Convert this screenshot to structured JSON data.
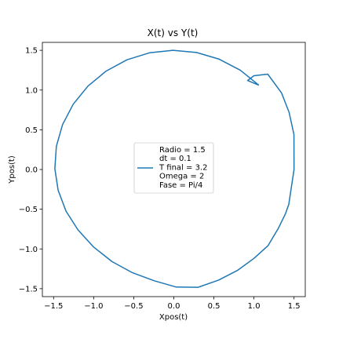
{
  "chart_data": {
    "type": "line",
    "title": "X(t) vs Y(t)",
    "xlabel": "Xpos(t)",
    "ylabel": "Ypos(t)",
    "xlim": [
      -1.64,
      1.64
    ],
    "ylim": [
      -1.6,
      1.6
    ],
    "xticks": [
      -1.5,
      -1.0,
      -0.5,
      0.0,
      0.5,
      1.0,
      1.5
    ],
    "xtick_labels": [
      "−1.5",
      "−1.0",
      "−0.5",
      "0.0",
      "0.5",
      "1.0",
      "1.5"
    ],
    "yticks": [
      -1.5,
      -1.0,
      -0.5,
      0.0,
      0.5,
      1.0,
      1.5
    ],
    "ytick_labels": [
      "−1.5",
      "−1.0",
      "−0.5",
      "0.0",
      "0.5",
      "1.0",
      "1.5"
    ],
    "grid": false,
    "legend_position": "center",
    "series": [
      {
        "name": "Radio = 1.5\ndt = 0.1\nT final = 3.2\nOmega = 2\nFase = Pi/4",
        "color": "#1f77b4",
        "x": [
          1.061,
          0.829,
          0.566,
          0.284,
          -0.01,
          -0.304,
          -0.585,
          -0.845,
          -1.071,
          -1.255,
          -1.388,
          -1.466,
          -1.484,
          -1.443,
          -1.345,
          -1.196,
          -1.002,
          -0.771,
          -0.515,
          -0.244,
          0.03,
          0.303,
          0.559,
          0.794,
          1.001,
          1.174,
          1.306,
          1.393,
          1.434,
          1.5,
          1.499,
          1.438,
          1.343,
          1.172,
          1.0,
          0.92
        ],
        "y": [
          1.061,
          1.25,
          1.389,
          1.473,
          1.5,
          1.469,
          1.381,
          1.239,
          1.05,
          0.822,
          0.565,
          0.29,
          0.01,
          -0.262,
          -0.523,
          -0.76,
          -0.975,
          -1.16,
          -1.3,
          -1.4,
          -1.48,
          -1.482,
          -1.392,
          -1.27,
          -1.118,
          -0.96,
          -0.737,
          -0.556,
          -0.44,
          0.0,
          0.44,
          0.72,
          0.965,
          1.2,
          1.18,
          1.12
        ]
      }
    ],
    "legend_lines": [
      "Radio = 1.5",
      "dt = 0.1",
      "T final = 3.2",
      "Omega = 2",
      "Fase = Pi/4"
    ]
  }
}
